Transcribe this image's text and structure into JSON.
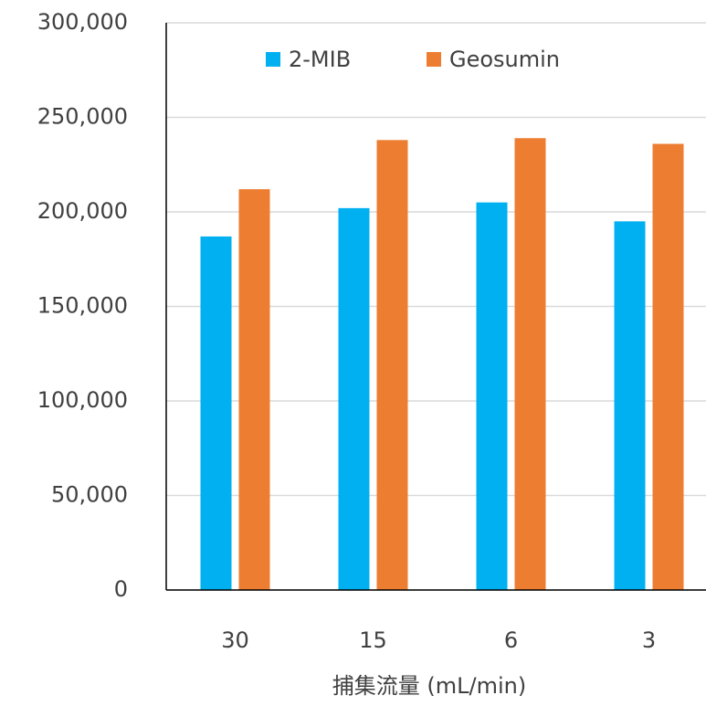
{
  "chart_data": {
    "type": "bar",
    "x_label": "捕集流量 (mL/min)",
    "categories": [
      "30",
      "15",
      "6",
      "3"
    ],
    "series": [
      {
        "name": "2-MIB",
        "color": "#00b0f0",
        "values": [
          187000,
          202000,
          205000,
          195000
        ]
      },
      {
        "name": "Geosumin",
        "color": "#ed7d31",
        "values": [
          212000,
          238000,
          239000,
          236000
        ]
      }
    ],
    "ylim": [
      0,
      300000
    ],
    "yticks": [
      0,
      {
        "value": 50000,
        "label": "50,000"
      },
      {
        "value": 100000,
        "label": "100,000"
      },
      {
        "value": 150000,
        "label": "150,000"
      },
      {
        "value": 200000,
        "label": "200,000"
      },
      {
        "value": 250000,
        "label": "250,000"
      },
      {
        "value": 300000,
        "label": "300,000"
      }
    ],
    "grid": true,
    "legend": "top"
  }
}
